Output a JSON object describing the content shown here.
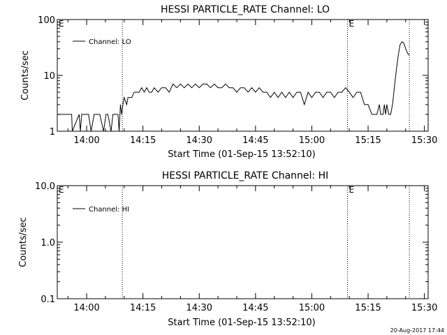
{
  "footer_timestamp": "20-Aug-2017 17:44",
  "chart_data": [
    {
      "type": "line",
      "title": "HESSI PARTICLE_RATE Channel: LO",
      "xlabel": "Start Time (01-Sep-15 13:52:10)",
      "ylabel": "Counts/sec",
      "yscale": "log",
      "ylim": [
        1,
        100
      ],
      "xlim": [
        "13:52:10",
        "15:31:00"
      ],
      "xticks": [
        "14:00",
        "14:15",
        "14:30",
        "14:45",
        "15:00",
        "15:15",
        "15:30"
      ],
      "yticks": [
        "1",
        "10",
        "100"
      ],
      "legend": {
        "position": "top-left",
        "entries": [
          "Channel: LO"
        ]
      },
      "event_lines": [
        {
          "time": "14:09:30",
          "label": ""
        },
        {
          "time": "15:09:30",
          "label": "E"
        },
        {
          "time": "15:26:00",
          "label": ""
        }
      ],
      "corner_label": "E",
      "series": [
        {
          "name": "Channel: LO",
          "x": [
            "13:52:10",
            "13:56:00",
            "13:56:10",
            "13:58:00",
            "13:58:20",
            "13:58:40",
            "13:59:00",
            "14:00:30",
            "14:01:10",
            "14:02:00",
            "14:02:20",
            "14:03:30",
            "14:04:30",
            "14:05:10",
            "14:05:40",
            "14:06:30",
            "14:07:00",
            "14:08:00",
            "14:08:20",
            "14:08:40",
            "14:09:00",
            "14:09:20",
            "14:09:40",
            "14:10:00",
            "14:10:40",
            "14:11:00",
            "14:12:00",
            "14:12:40",
            "14:13:20",
            "14:14:00",
            "14:14:40",
            "14:15:20",
            "14:16:00",
            "14:16:40",
            "14:17:20",
            "14:18:00",
            "14:19:00",
            "14:20:00",
            "14:21:00",
            "14:22:00",
            "14:23:00",
            "14:24:00",
            "14:25:00",
            "14:26:00",
            "14:27:00",
            "14:28:00",
            "14:29:00",
            "14:30:00",
            "14:31:00",
            "14:32:00",
            "14:33:00",
            "14:34:00",
            "14:35:00",
            "14:36:00",
            "14:37:00",
            "14:38:00",
            "14:39:00",
            "14:40:00",
            "14:41:00",
            "14:42:00",
            "14:43:00",
            "14:44:00",
            "14:45:00",
            "14:46:00",
            "14:47:00",
            "14:48:00",
            "14:49:00",
            "14:50:00",
            "14:51:00",
            "14:52:00",
            "14:53:00",
            "14:54:00",
            "14:55:00",
            "14:56:00",
            "14:57:00",
            "14:58:00",
            "14:59:00",
            "15:00:00",
            "15:01:00",
            "15:02:00",
            "15:03:00",
            "15:04:00",
            "15:05:00",
            "15:06:00",
            "15:07:00",
            "15:08:00",
            "15:09:00",
            "15:10:00",
            "15:11:00",
            "15:12:00",
            "15:13:00",
            "15:14:00",
            "15:15:00",
            "15:16:00",
            "15:16:40",
            "15:17:00",
            "15:17:20",
            "15:18:00",
            "15:18:20",
            "15:19:00",
            "15:19:20",
            "15:19:40",
            "15:20:00",
            "15:20:30",
            "15:21:00",
            "15:21:30",
            "15:22:00",
            "15:22:30",
            "15:23:00",
            "15:23:30",
            "15:24:00",
            "15:24:30",
            "15:25:00",
            "15:25:30",
            "15:26:00"
          ],
          "y": [
            2.0,
            2.0,
            1.0,
            2.0,
            1.0,
            2.0,
            2.0,
            2.0,
            1.0,
            2.0,
            2.0,
            2.0,
            1.0,
            2.0,
            2.0,
            1.0,
            2.0,
            2.0,
            2.0,
            1.0,
            3.0,
            2.0,
            3.0,
            4.0,
            3.0,
            4.0,
            4.0,
            5.0,
            5.0,
            5.0,
            6.0,
            5.0,
            6.0,
            5.0,
            5.0,
            6.0,
            5.0,
            6.0,
            6.0,
            5.0,
            7.0,
            6.0,
            7.0,
            6.0,
            7.0,
            6.0,
            7.0,
            6.0,
            7.0,
            7.0,
            6.0,
            7.0,
            6.0,
            6.0,
            7.0,
            6.0,
            6.0,
            5.0,
            6.0,
            6.0,
            5.0,
            6.0,
            5.0,
            6.0,
            5.0,
            5.0,
            4.0,
            5.0,
            4.0,
            5.0,
            4.0,
            5.0,
            4.0,
            5.0,
            5.0,
            3.0,
            5.0,
            4.0,
            5.0,
            5.0,
            4.0,
            5.0,
            5.0,
            4.0,
            5.0,
            5.0,
            6.0,
            5.0,
            4.0,
            5.0,
            5.0,
            3.0,
            3.0,
            2.0,
            2.0,
            2.0,
            2.0,
            3.0,
            2.0,
            2.0,
            3.0,
            2.0,
            3.0,
            2.0,
            2.0,
            3.0,
            6.0,
            12.0,
            22.0,
            35.0,
            40.0,
            38.0,
            30.0,
            25.0,
            23.0
          ]
        }
      ]
    },
    {
      "type": "line",
      "title": "HESSI PARTICLE_RATE Channel: HI",
      "xlabel": "Start Time (01-Sep-15 13:52:10)",
      "ylabel": "Counts/sec",
      "yscale": "log",
      "ylim": [
        0.1,
        10
      ],
      "xlim": [
        "13:52:10",
        "15:31:00"
      ],
      "xticks": [
        "14:00",
        "14:15",
        "14:30",
        "14:45",
        "15:00",
        "15:15",
        "15:30"
      ],
      "yticks": [
        "0.1",
        "1.0",
        "10.0"
      ],
      "legend": {
        "position": "top-left",
        "entries": [
          "Channel: HI"
        ]
      },
      "event_lines": [
        {
          "time": "14:09:30",
          "label": ""
        },
        {
          "time": "15:09:30",
          "label": "E"
        },
        {
          "time": "15:26:00",
          "label": ""
        }
      ],
      "corner_label": "E",
      "series": [
        {
          "name": "Channel: HI",
          "x": [],
          "y": []
        }
      ]
    }
  ]
}
